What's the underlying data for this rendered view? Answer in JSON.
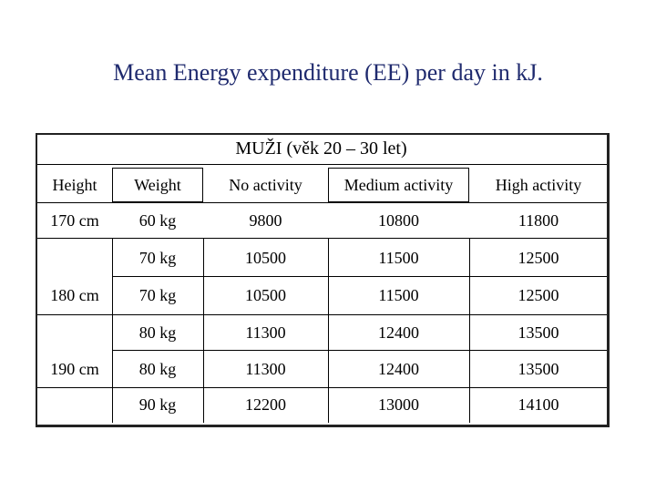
{
  "title": "Mean Energy expenditure (EE) per day in kJ.",
  "table": {
    "caption": "MUŽI (věk 20 – 30 let)",
    "headers": [
      "Height",
      "Weight",
      "No activity",
      "Medium activity",
      "High activity"
    ],
    "rows": [
      [
        "170 cm",
        "60 kg",
        "9800",
        "10800",
        "11800"
      ],
      [
        "",
        "70 kg",
        "10500",
        "11500",
        "12500"
      ],
      [
        "180 cm",
        "70 kg",
        "10500",
        "11500",
        "12500"
      ],
      [
        "",
        "80 kg",
        "11300",
        "12400",
        "13500"
      ],
      [
        "190 cm",
        "80 kg",
        "11300",
        "12400",
        "13500"
      ],
      [
        "",
        "90 kg",
        "12200",
        "13000",
        "14100"
      ]
    ]
  }
}
